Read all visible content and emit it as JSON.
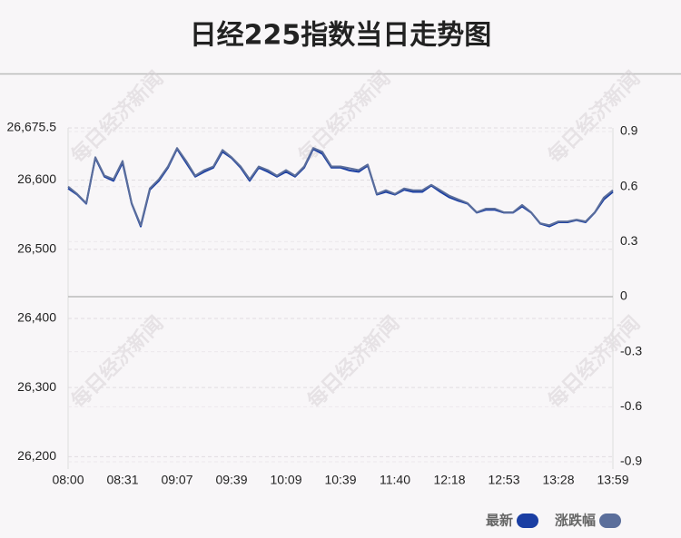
{
  "chart_data": {
    "type": "line",
    "title": "日经225指数当日走势图",
    "watermark": "每日经济新闻",
    "categories": [
      "08:00",
      null,
      null,
      null,
      null,
      null,
      "08:31",
      null,
      null,
      null,
      null,
      null,
      "09:07",
      null,
      null,
      null,
      null,
      null,
      "09:39",
      null,
      null,
      null,
      null,
      null,
      "10:09",
      null,
      null,
      null,
      null,
      null,
      "10:39",
      null,
      null,
      null,
      null,
      null,
      "11:40",
      null,
      null,
      null,
      null,
      null,
      "12:18",
      null,
      null,
      null,
      null,
      null,
      "12:53",
      null,
      null,
      null,
      null,
      null,
      "13:28",
      null,
      null,
      null,
      null,
      null,
      "13:59"
    ],
    "series": [
      {
        "name": "最新",
        "color": "#1a3ea3",
        "values": [
          26588,
          26579,
          26566,
          26632,
          26605,
          26599,
          26625,
          26566,
          26533,
          26586,
          26599,
          26618,
          26645,
          26625,
          26605,
          26612,
          26618,
          26641,
          26632,
          26618,
          26599,
          26618,
          26612,
          26605,
          26612,
          26605,
          26618,
          26645,
          26638,
          26618,
          26618,
          26614,
          26612,
          26621,
          26579,
          26583,
          26579,
          26586,
          26583,
          26583,
          26592,
          26583,
          26575,
          26570,
          26566,
          26553,
          26557,
          26557,
          26553,
          26553,
          26562,
          26553,
          26537,
          26533,
          26539,
          26539,
          26542,
          26539,
          26553,
          26572,
          26583
        ]
      },
      {
        "name": "涨跌幅",
        "color": "#5b6e9b",
        "axis": "y2",
        "values": [
          0.6,
          0.56,
          0.51,
          0.76,
          0.66,
          0.64,
          0.74,
          0.51,
          0.39,
          0.59,
          0.64,
          0.71,
          0.81,
          0.74,
          0.66,
          0.69,
          0.71,
          0.8,
          0.76,
          0.71,
          0.64,
          0.71,
          0.69,
          0.66,
          0.69,
          0.66,
          0.71,
          0.81,
          0.79,
          0.71,
          0.71,
          0.7,
          0.69,
          0.72,
          0.56,
          0.58,
          0.56,
          0.59,
          0.58,
          0.58,
          0.61,
          0.58,
          0.55,
          0.53,
          0.51,
          0.46,
          0.48,
          0.48,
          0.46,
          0.46,
          0.5,
          0.46,
          0.4,
          0.39,
          0.41,
          0.41,
          0.42,
          0.41,
          0.46,
          0.54,
          0.58
        ]
      }
    ],
    "ylim": [
      26190,
      26675.5
    ],
    "yticks": [
      {
        "value": 26200,
        "label": "26,200"
      },
      {
        "value": 26300,
        "label": "26,300"
      },
      {
        "value": 26400,
        "label": "26,400"
      },
      {
        "value": 26500,
        "label": "26,500"
      },
      {
        "value": 26600,
        "label": "26,600"
      },
      {
        "value": 26675.5,
        "label": "26,675.5"
      }
    ],
    "y2lim": [
      -0.91,
      0.92
    ],
    "y2ticks": [
      -0.9,
      -0.6,
      -0.3,
      0,
      0.3,
      0.6,
      0.9
    ],
    "grid": true
  }
}
